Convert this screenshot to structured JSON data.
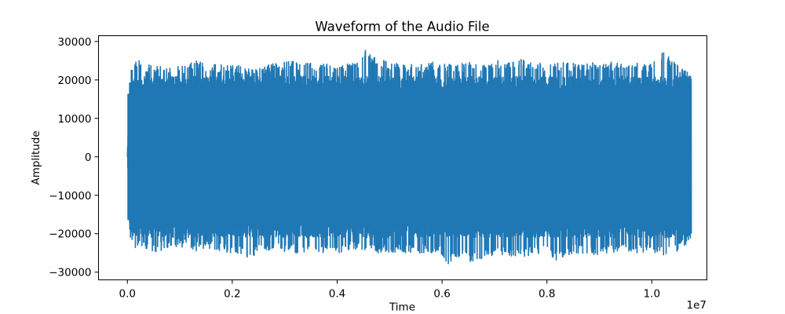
{
  "chart_data": {
    "type": "line",
    "title": "Waveform of the Audio File",
    "xlabel": "Time",
    "ylabel": "Amplitude",
    "x_offset_text": "1e7",
    "xlim": [
      -0.055,
      1.105
    ],
    "ylim": [
      -32000,
      31500
    ],
    "xticks": [
      0.0,
      0.2,
      0.4,
      0.6,
      0.8,
      1.0
    ],
    "xtick_labels": [
      "0.0",
      "0.2",
      "0.4",
      "0.6",
      "0.8",
      "1.0"
    ],
    "yticks": [
      -30000,
      -20000,
      -10000,
      0,
      10000,
      20000,
      30000
    ],
    "ytick_labels": [
      "−30000",
      "−20000",
      "−10000",
      "0",
      "10000",
      "20000",
      "30000"
    ],
    "grid": false,
    "series": [
      {
        "color": "#1f77b4",
        "x_start": 0.0,
        "x_end": 1.075,
        "typical_amplitude_range": [
          -21000,
          21000
        ],
        "envelope": {
          "x": [
            0.0,
            0.005,
            0.01,
            0.02,
            0.03,
            0.05,
            0.07,
            0.1,
            0.13,
            0.15,
            0.2,
            0.23,
            0.26,
            0.3,
            0.35,
            0.4,
            0.44,
            0.445,
            0.5,
            0.55,
            0.6,
            0.61,
            0.62,
            0.65,
            0.7,
            0.75,
            0.8,
            0.82,
            0.85,
            0.9,
            0.95,
            1.0,
            1.02,
            1.03,
            1.05,
            1.075
          ],
          "max": [
            0,
            22000,
            24500,
            25500,
            24500,
            23500,
            24000,
            23500,
            25500,
            24000,
            24500,
            23000,
            24000,
            25000,
            24500,
            24000,
            24500,
            28500,
            24500,
            24000,
            25000,
            24000,
            24500,
            24500,
            25000,
            25500,
            24000,
            24500,
            24500,
            25000,
            24500,
            24500,
            27500,
            26500,
            24000,
            21500
          ],
          "min": [
            0,
            -22500,
            -23500,
            -24000,
            -23500,
            -25500,
            -24000,
            -23500,
            -24500,
            -24000,
            -25000,
            -26500,
            -24500,
            -25000,
            -25000,
            -25000,
            -24000,
            -25000,
            -25000,
            -25000,
            -25500,
            -30500,
            -26000,
            -27500,
            -25500,
            -26000,
            -25000,
            -27500,
            -25000,
            -25500,
            -25000,
            -25000,
            -25500,
            -26000,
            -24500,
            -22000
          ]
        }
      }
    ]
  }
}
